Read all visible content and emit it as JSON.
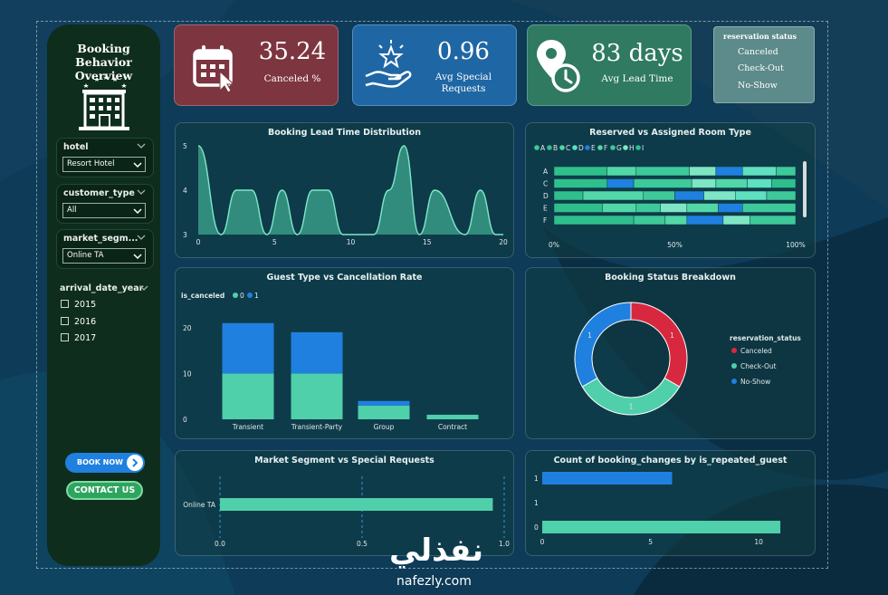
{
  "colors": {
    "teal": "#4fcfaa",
    "blue": "#1f80e0",
    "red": "#d8283f",
    "sidebar_bg": "#0e2d1c",
    "kpi_canceled": "#7d3540",
    "kpi_requests": "#1f67a4",
    "kpi_leadtime": "#2f7a60"
  },
  "sidebar": {
    "title": "Booking Behavior Overview",
    "icon": "hotel-icon",
    "slicers": [
      {
        "label": "hotel",
        "value": "Resort Hotel"
      },
      {
        "label": "customer_type",
        "value": "All"
      },
      {
        "label": "market_segm...",
        "value": "Online TA"
      }
    ],
    "year_slicer": {
      "label": "arrival_date_year",
      "options": [
        "2015",
        "2016",
        "2017"
      ]
    },
    "book_button": "BOOK NOW",
    "contact_button": "CONTACT US"
  },
  "kpis": [
    {
      "value": "35.24",
      "label": "Canceled %",
      "icon": "calendar-icon"
    },
    {
      "value": "0.96",
      "label": "Avg Special Requests",
      "icon": "star-hand-icon"
    },
    {
      "value": "83 days",
      "label": "Avg Lead Time",
      "icon": "location-clock-icon"
    }
  ],
  "status_legend": {
    "title": "reservation status",
    "items": [
      "Canceled",
      "Check-Out",
      "No-Show"
    ]
  },
  "charts": {
    "lead_time": {
      "title": "Booking Lead Time Distribution",
      "xticks": [
        "0",
        "5",
        "10",
        "15",
        "20"
      ],
      "yticks": [
        "5",
        "4",
        "3"
      ],
      "chart_data": {
        "type": "area",
        "x": [
          0,
          1.5,
          2.5,
          3.5,
          4.5,
          5.5,
          6.5,
          7.5,
          8.5,
          9.5,
          11.5,
          12.5,
          13.5,
          14.5,
          15.5,
          17.5,
          18.5,
          19.5,
          20
        ],
        "y": [
          5,
          3,
          4,
          4,
          3,
          4,
          3,
          4,
          4,
          3,
          3,
          4,
          5,
          3,
          4,
          3,
          4,
          3,
          3
        ],
        "ylim": [
          3,
          5
        ],
        "xlim": [
          0,
          20
        ]
      }
    },
    "room_type": {
      "title": "Reserved vs Assigned Room Type",
      "legend": [
        "A",
        "B",
        "C",
        "D",
        "E",
        "F",
        "G",
        "H",
        "I"
      ],
      "rows": [
        "A",
        "C",
        "D",
        "E",
        "F"
      ],
      "xticks": [
        "0%",
        "50%",
        "100%"
      ],
      "chart_data": {
        "type": "bar",
        "categories": [
          "A",
          "C",
          "D",
          "E",
          "F"
        ],
        "segment_shares": [
          [
            0.22,
            0.12,
            0.22,
            0.11,
            0.11,
            0.14,
            0.08
          ],
          [
            0.22,
            0.11,
            0.24,
            0.1,
            0.13,
            0.1,
            0.1
          ],
          [
            0.12,
            0.25,
            0.13,
            0.12,
            0.13,
            0.13,
            0.12
          ],
          [
            0.2,
            0.14,
            0.1,
            0.11,
            0.13,
            0.1,
            0.22
          ],
          [
            0.33,
            0.13,
            0.09,
            0.15,
            0.11,
            0.19
          ]
        ],
        "segment_colors": [
          [
            "#2fbf8c",
            "#52d7a8",
            "#3ec99a",
            "#7ee6c4",
            "#1f80e0",
            "#5fe0c0",
            "#3ec99a"
          ],
          [
            "#2fbf8c",
            "#1f80e0",
            "#3ec99a",
            "#7ee6c4",
            "#52d7a8",
            "#5fe0c0",
            "#2fbf8c"
          ],
          [
            "#2fbf8c",
            "#52d7a8",
            "#3ec99a",
            "#1f80e0",
            "#7ee6c4",
            "#5fe0c0",
            "#3ec99a"
          ],
          [
            "#2fbf8c",
            "#52d7a8",
            "#3ec99a",
            "#7ee6c4",
            "#52d7a8",
            "#1f80e0",
            "#3ec99a"
          ],
          [
            "#2fbf8c",
            "#3ec99a",
            "#52d7a8",
            "#1f80e0",
            "#7ee6c4",
            "#3ec99a"
          ]
        ]
      }
    },
    "guest_type": {
      "title": "Guest Type vs Cancellation Rate",
      "legend_title": "is_canceled",
      "legend": [
        "0",
        "1"
      ],
      "yticks": [
        "20",
        "10",
        "0"
      ],
      "chart_data": {
        "type": "bar",
        "categories": [
          "Transient",
          "Transient-Party",
          "Group",
          "Contract"
        ],
        "series": [
          {
            "name": "0",
            "values": [
              10,
              10,
              3,
              1
            ]
          },
          {
            "name": "1",
            "values": [
              11,
              9,
              1,
              0
            ]
          }
        ],
        "ylim": [
          0,
          22
        ]
      }
    },
    "status": {
      "title": "Booking Status Breakdown",
      "legend_title": "reservation_status",
      "legend": [
        "Canceled",
        "Check-Out",
        "No-Show"
      ],
      "slice_labels": [
        "1",
        "1",
        "1"
      ],
      "chart_data": {
        "type": "pie",
        "categories": [
          "Canceled",
          "Check-Out",
          "No-Show"
        ],
        "values": [
          1,
          1,
          1
        ]
      }
    },
    "market_segment": {
      "title": "Market Segment vs Special Requests",
      "category": "Online TA",
      "xticks": [
        "0.0",
        "0.5",
        "1.0"
      ],
      "chart_data": {
        "type": "bar",
        "categories": [
          "Online TA"
        ],
        "values": [
          0.96
        ],
        "xlim": [
          0,
          1
        ]
      }
    },
    "booking_changes": {
      "title": "Count of booking_changes by is_repeated_guest",
      "yticks": [
        "1",
        "1",
        "0"
      ],
      "xticks": [
        "0",
        "5",
        "10"
      ],
      "chart_data": {
        "type": "bar",
        "categories": [
          "1",
          "1",
          "0"
        ],
        "values": [
          6,
          0,
          11
        ],
        "xlim": [
          0,
          12
        ]
      }
    }
  },
  "watermark": {
    "arabic": "نفذلي",
    "latin": "nafezly.com"
  }
}
